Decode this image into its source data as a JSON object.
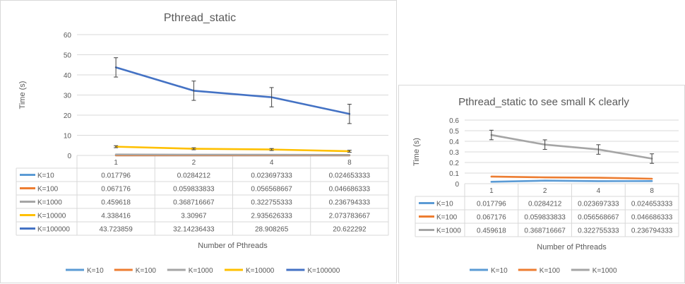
{
  "chart_data": [
    {
      "type": "line",
      "title": "Pthread_static",
      "xlabel": "Number of Pthreads",
      "ylabel": "Time (s)",
      "categories": [
        "1",
        "2",
        "4",
        "8"
      ],
      "yticks": [
        "0",
        "10",
        "20",
        "30",
        "40",
        "50",
        "60"
      ],
      "ylim": [
        0,
        60
      ],
      "grid": true,
      "legend_position": "bottom",
      "has_data_table": true,
      "series": [
        {
          "name": "K=10",
          "color": "#5b9bd5",
          "values": [
            0.017796,
            0.0284212,
            0.023697333,
            0.024653333
          ],
          "labels": [
            "0.017796",
            "0.0284212",
            "0.023697333",
            "0.024653333"
          ]
        },
        {
          "name": "K=100",
          "color": "#ed7d31",
          "values": [
            0.067176,
            0.059833833,
            0.056568667,
            0.046686333
          ],
          "labels": [
            "0.067176",
            "0.059833833",
            "0.056568667",
            "0.046686333"
          ]
        },
        {
          "name": "K=1000",
          "color": "#a5a5a5",
          "values": [
            0.459618,
            0.368716667,
            0.322755333,
            0.236794333
          ],
          "labels": [
            "0.459618",
            "0.368716667",
            "0.322755333",
            "0.236794333"
          ]
        },
        {
          "name": "K=10000",
          "color": "#ffc000",
          "values": [
            4.338416,
            3.30967,
            2.935626333,
            2.073783667
          ],
          "labels": [
            "4.338416",
            "3.30967",
            "2.935626333",
            "2.073783667"
          ]
        },
        {
          "name": "K=100000",
          "color": "#4472c4",
          "values": [
            43.723859,
            32.14236433,
            28.908265,
            20.622292
          ],
          "labels": [
            "43.723859",
            "32.14236433",
            "28.908265",
            "20.622292"
          ]
        }
      ],
      "error_bars": {
        "K=10000": 0.5,
        "K=100000": 4.8
      }
    },
    {
      "type": "line",
      "title": "Pthread_static to see small K clearly",
      "xlabel": "Number of Pthreads",
      "ylabel": "Time (s)",
      "categories": [
        "1",
        "2",
        "4",
        "8"
      ],
      "yticks": [
        "0",
        "0.1",
        "0.2",
        "0.3",
        "0.4",
        "0.5",
        "0.6"
      ],
      "ylim": [
        0,
        0.6
      ],
      "grid": true,
      "legend_position": "bottom",
      "has_data_table": true,
      "series": [
        {
          "name": "K=10",
          "color": "#5b9bd5",
          "values": [
            0.017796,
            0.0284212,
            0.023697333,
            0.024653333
          ],
          "labels": [
            "0.017796",
            "0.0284212",
            "0.023697333",
            "0.024653333"
          ]
        },
        {
          "name": "K=100",
          "color": "#ed7d31",
          "values": [
            0.067176,
            0.059833833,
            0.056568667,
            0.046686333
          ],
          "labels": [
            "0.067176",
            "0.059833833",
            "0.056568667",
            "0.046686333"
          ]
        },
        {
          "name": "K=1000",
          "color": "#a5a5a5",
          "values": [
            0.459618,
            0.368716667,
            0.322755333,
            0.236794333
          ],
          "labels": [
            "0.459618",
            "0.368716667",
            "0.322755333",
            "0.236794333"
          ]
        }
      ],
      "error_bars": {
        "K=1000": 0.045
      }
    }
  ]
}
